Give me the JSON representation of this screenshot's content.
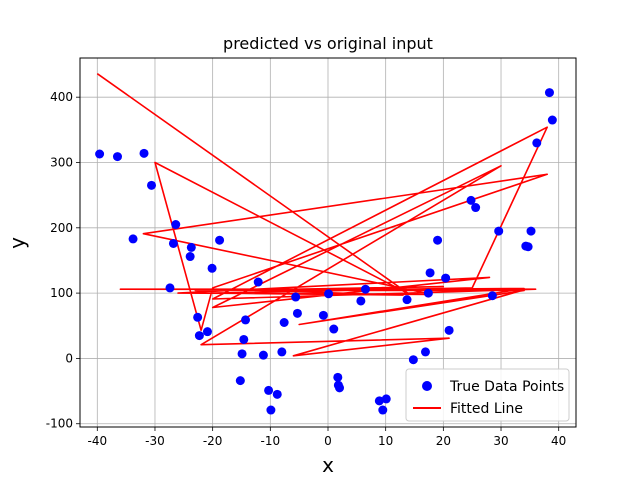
{
  "chart_data": {
    "type": "scatter",
    "title": "predicted vs original input",
    "xlabel": "x",
    "ylabel": "y",
    "xlim": [
      -43,
      43
    ],
    "ylim": [
      -105,
      460
    ],
    "xticks": [
      -40,
      -30,
      -20,
      -10,
      0,
      10,
      20,
      30,
      40
    ],
    "yticks": [
      -100,
      0,
      100,
      200,
      300,
      400
    ],
    "grid": true,
    "legend_position": "lower-right",
    "series": [
      {
        "name": "True Data Points",
        "kind": "scatter",
        "color": "#0000ff",
        "points": [
          [
            -39.6,
            313
          ],
          [
            -36.5,
            309
          ],
          [
            -31.9,
            314
          ],
          [
            -30.6,
            265
          ],
          [
            -33.8,
            183
          ],
          [
            -26.4,
            205
          ],
          [
            -26.8,
            176
          ],
          [
            -27.4,
            108
          ],
          [
            -23.7,
            170
          ],
          [
            -23.9,
            156
          ],
          [
            -18.8,
            181
          ],
          [
            -20.1,
            138
          ],
          [
            -22.6,
            63
          ],
          [
            -22.3,
            35
          ],
          [
            -20.9,
            41
          ],
          [
            -14.3,
            59
          ],
          [
            -14.6,
            29
          ],
          [
            -14.9,
            7
          ],
          [
            -12.1,
            117
          ],
          [
            -11.2,
            5
          ],
          [
            -15.2,
            -34
          ],
          [
            -10.3,
            -49
          ],
          [
            -9.9,
            -79
          ],
          [
            -8.8,
            -55
          ],
          [
            -8.0,
            10
          ],
          [
            -7.6,
            55
          ],
          [
            -5.6,
            94
          ],
          [
            -5.3,
            69
          ],
          [
            -0.8,
            66
          ],
          [
            0.1,
            99
          ],
          [
            1.0,
            45
          ],
          [
            1.7,
            -29
          ],
          [
            1.8,
            -41
          ],
          [
            2.0,
            -45
          ],
          [
            5.7,
            88
          ],
          [
            6.5,
            106
          ],
          [
            8.9,
            -65
          ],
          [
            9.5,
            -79
          ],
          [
            10.1,
            -62
          ],
          [
            13.7,
            90
          ],
          [
            14.8,
            -2
          ],
          [
            16.9,
            10
          ],
          [
            17.4,
            100
          ],
          [
            17.7,
            131
          ],
          [
            19.0,
            181
          ],
          [
            20.4,
            123
          ],
          [
            21.0,
            43
          ],
          [
            24.8,
            242
          ],
          [
            25.6,
            231
          ],
          [
            28.5,
            96
          ],
          [
            29.6,
            195
          ],
          [
            34.3,
            172
          ],
          [
            34.7,
            171
          ],
          [
            35.2,
            195
          ],
          [
            36.2,
            330
          ],
          [
            38.4,
            407
          ],
          [
            38.9,
            365
          ]
        ]
      },
      {
        "name": "Fitted Line",
        "kind": "line",
        "color": "#ff0000",
        "points": [
          [
            -40.0,
            436
          ],
          [
            14.0,
            99
          ],
          [
            -30.0,
            300
          ],
          [
            -22.0,
            43
          ],
          [
            -20.0,
            108
          ],
          [
            38.0,
            282
          ],
          [
            -32.0,
            191
          ],
          [
            18.0,
            98
          ],
          [
            -26.0,
            100
          ],
          [
            28.0,
            124
          ],
          [
            -20.0,
            78
          ],
          [
            30.0,
            295
          ],
          [
            -22.0,
            21
          ],
          [
            21.0,
            31
          ],
          [
            -6.0,
            4
          ],
          [
            34.0,
            105
          ],
          [
            -36.0,
            106
          ],
          [
            36.0,
            106
          ],
          [
            -20.0,
            91
          ],
          [
            38.0,
            354
          ],
          [
            25.0,
            108
          ],
          [
            -20.0,
            100
          ],
          [
            13.0,
            97
          ],
          [
            -12.0,
            104
          ],
          [
            20.0,
            110
          ],
          [
            -19.0,
            104
          ],
          [
            34.0,
            107
          ],
          [
            -5.0,
            52
          ],
          [
            34.0,
            104
          ],
          [
            -23.0,
            104
          ],
          [
            27.0,
            104
          ],
          [
            -10.0,
            104
          ],
          [
            9.0,
            107
          ],
          [
            -14.0,
            104
          ]
        ]
      }
    ]
  }
}
